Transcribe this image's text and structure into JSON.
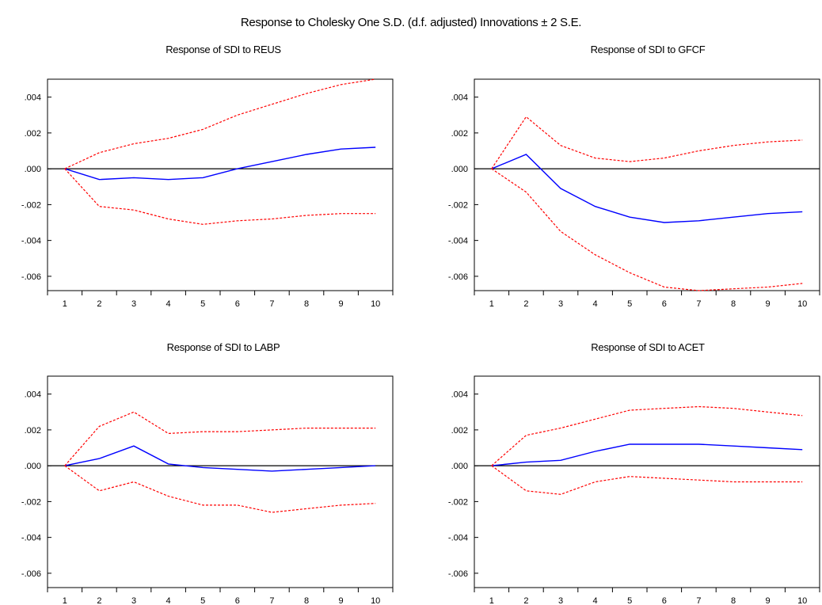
{
  "figure": {
    "title": "Response to Cholesky One S.D. (d.f. adjusted) Innovations ± 2 S.E."
  },
  "style": {
    "response_color": "#0000ff",
    "band_color": "#ff0000",
    "zero_line_color": "#000000",
    "frame_color": "#000000"
  },
  "chart_data": [
    {
      "type": "line",
      "title": "Response of SDI to REUS",
      "x": [
        1,
        2,
        3,
        4,
        5,
        6,
        7,
        8,
        9,
        10
      ],
      "ylim": [
        -0.0068,
        0.005
      ],
      "yticks": [
        -0.006,
        -0.004,
        -0.002,
        0.0,
        0.002,
        0.004
      ],
      "ytick_labels": [
        "-.006",
        "-.004",
        "-.002",
        ".000",
        ".002",
        ".004"
      ],
      "xtick_labels": [
        "1",
        "2",
        "3",
        "4",
        "5",
        "6",
        "7",
        "8",
        "9",
        "10"
      ],
      "series": [
        {
          "role": "response",
          "style": "solid",
          "values": [
            0.0,
            -0.0006,
            -0.0005,
            -0.0006,
            -0.0005,
            0.0,
            0.0004,
            0.0008,
            0.0011,
            0.0012
          ]
        },
        {
          "role": "upper",
          "style": "dashed",
          "values": [
            0.0,
            0.0009,
            0.0014,
            0.0017,
            0.0022,
            0.003,
            0.0036,
            0.0042,
            0.0047,
            0.005
          ]
        },
        {
          "role": "lower",
          "style": "dashed",
          "values": [
            0.0,
            -0.0021,
            -0.0023,
            -0.0028,
            -0.0031,
            -0.0029,
            -0.0028,
            -0.0026,
            -0.0025,
            -0.0025
          ]
        }
      ]
    },
    {
      "type": "line",
      "title": "Response of SDI to GFCF",
      "x": [
        1,
        2,
        3,
        4,
        5,
        6,
        7,
        8,
        9,
        10
      ],
      "ylim": [
        -0.0068,
        0.005
      ],
      "yticks": [
        -0.006,
        -0.004,
        -0.002,
        0.0,
        0.002,
        0.004
      ],
      "ytick_labels": [
        "-.006",
        "-.004",
        "-.002",
        ".000",
        ".002",
        ".004"
      ],
      "xtick_labels": [
        "1",
        "2",
        "3",
        "4",
        "5",
        "6",
        "7",
        "8",
        "9",
        "10"
      ],
      "series": [
        {
          "role": "response",
          "style": "solid",
          "values": [
            0.0,
            0.0008,
            -0.0011,
            -0.0021,
            -0.0027,
            -0.003,
            -0.0029,
            -0.0027,
            -0.0025,
            -0.0024
          ]
        },
        {
          "role": "upper",
          "style": "dashed",
          "values": [
            0.0,
            0.0029,
            0.0013,
            0.0006,
            0.0004,
            0.0006,
            0.001,
            0.0013,
            0.0015,
            0.0016
          ]
        },
        {
          "role": "lower",
          "style": "dashed",
          "values": [
            0.0,
            -0.0013,
            -0.0035,
            -0.0048,
            -0.0058,
            -0.0066,
            -0.0068,
            -0.0067,
            -0.0066,
            -0.0064
          ]
        }
      ]
    },
    {
      "type": "line",
      "title": "Response of SDI to LABP",
      "x": [
        1,
        2,
        3,
        4,
        5,
        6,
        7,
        8,
        9,
        10
      ],
      "ylim": [
        -0.0068,
        0.005
      ],
      "yticks": [
        -0.006,
        -0.004,
        -0.002,
        0.0,
        0.002,
        0.004
      ],
      "ytick_labels": [
        "-.006",
        "-.004",
        "-.002",
        ".000",
        ".002",
        ".004"
      ],
      "xtick_labels": [
        "1",
        "2",
        "3",
        "4",
        "5",
        "6",
        "7",
        "8",
        "9",
        "10"
      ],
      "series": [
        {
          "role": "response",
          "style": "solid",
          "values": [
            0.0,
            0.0004,
            0.0011,
            0.0001,
            -0.0001,
            -0.0002,
            -0.0003,
            -0.0002,
            -0.0001,
            0.0
          ]
        },
        {
          "role": "upper",
          "style": "dashed",
          "values": [
            0.0,
            0.0022,
            0.003,
            0.0018,
            0.0019,
            0.0019,
            0.002,
            0.0021,
            0.0021,
            0.0021
          ]
        },
        {
          "role": "lower",
          "style": "dashed",
          "values": [
            0.0,
            -0.0014,
            -0.0009,
            -0.0017,
            -0.0022,
            -0.0022,
            -0.0026,
            -0.0024,
            -0.0022,
            -0.0021
          ]
        }
      ]
    },
    {
      "type": "line",
      "title": "Response of SDI to ACET",
      "x": [
        1,
        2,
        3,
        4,
        5,
        6,
        7,
        8,
        9,
        10
      ],
      "ylim": [
        -0.0068,
        0.005
      ],
      "yticks": [
        -0.006,
        -0.004,
        -0.002,
        0.0,
        0.002,
        0.004
      ],
      "ytick_labels": [
        "-.006",
        "-.004",
        "-.002",
        ".000",
        ".002",
        ".004"
      ],
      "xtick_labels": [
        "1",
        "2",
        "3",
        "4",
        "5",
        "6",
        "7",
        "8",
        "9",
        "10"
      ],
      "series": [
        {
          "role": "response",
          "style": "solid",
          "values": [
            0.0,
            0.0002,
            0.0003,
            0.0008,
            0.0012,
            0.0012,
            0.0012,
            0.0011,
            0.001,
            0.0009
          ]
        },
        {
          "role": "upper",
          "style": "dashed",
          "values": [
            0.0,
            0.0017,
            0.0021,
            0.0026,
            0.0031,
            0.0032,
            0.0033,
            0.0032,
            0.003,
            0.0028
          ]
        },
        {
          "role": "lower",
          "style": "dashed",
          "values": [
            0.0,
            -0.0014,
            -0.0016,
            -0.0009,
            -0.0006,
            -0.0007,
            -0.0008,
            -0.0009,
            -0.0009,
            -0.0009
          ]
        }
      ]
    }
  ]
}
